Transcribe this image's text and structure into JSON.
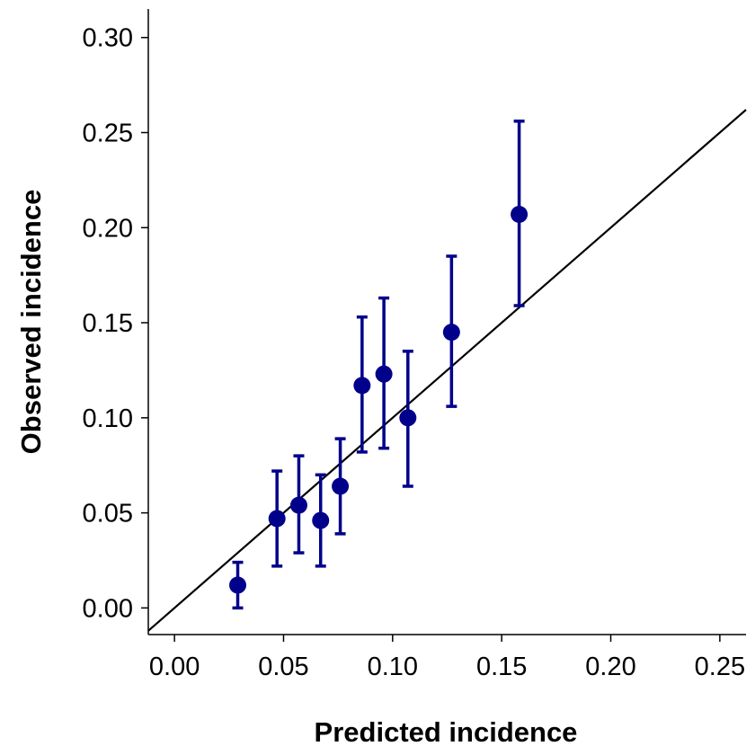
{
  "chart_data": {
    "type": "scatter",
    "xlabel": "Predicted incidence",
    "ylabel": "Observed incidence",
    "xlim": [
      -0.012,
      0.262
    ],
    "ylim": [
      -0.014,
      0.315
    ],
    "x_ticks": [
      "0.00",
      "0.05",
      "0.10",
      "0.15",
      "0.20",
      "0.25"
    ],
    "y_ticks": [
      "0.00",
      "0.05",
      "0.10",
      "0.15",
      "0.20",
      "0.25",
      "0.30"
    ],
    "reference_line": {
      "type": "identity",
      "slope": 1,
      "intercept": 0
    },
    "marker_color": "#00008B",
    "line_color": "#000000",
    "series": [
      {
        "points": [
          {
            "x": 0.029,
            "y": 0.012,
            "ylow": 0.0,
            "yhigh": 0.024
          },
          {
            "x": 0.047,
            "y": 0.047,
            "ylow": 0.022,
            "yhigh": 0.072
          },
          {
            "x": 0.057,
            "y": 0.054,
            "ylow": 0.029,
            "yhigh": 0.08
          },
          {
            "x": 0.067,
            "y": 0.046,
            "ylow": 0.022,
            "yhigh": 0.07
          },
          {
            "x": 0.076,
            "y": 0.064,
            "ylow": 0.039,
            "yhigh": 0.089
          },
          {
            "x": 0.086,
            "y": 0.117,
            "ylow": 0.082,
            "yhigh": 0.153
          },
          {
            "x": 0.096,
            "y": 0.123,
            "ylow": 0.084,
            "yhigh": 0.163
          },
          {
            "x": 0.107,
            "y": 0.1,
            "ylow": 0.064,
            "yhigh": 0.135
          },
          {
            "x": 0.127,
            "y": 0.145,
            "ylow": 0.106,
            "yhigh": 0.185
          },
          {
            "x": 0.158,
            "y": 0.207,
            "ylow": 0.159,
            "yhigh": 0.256
          }
        ]
      }
    ]
  }
}
